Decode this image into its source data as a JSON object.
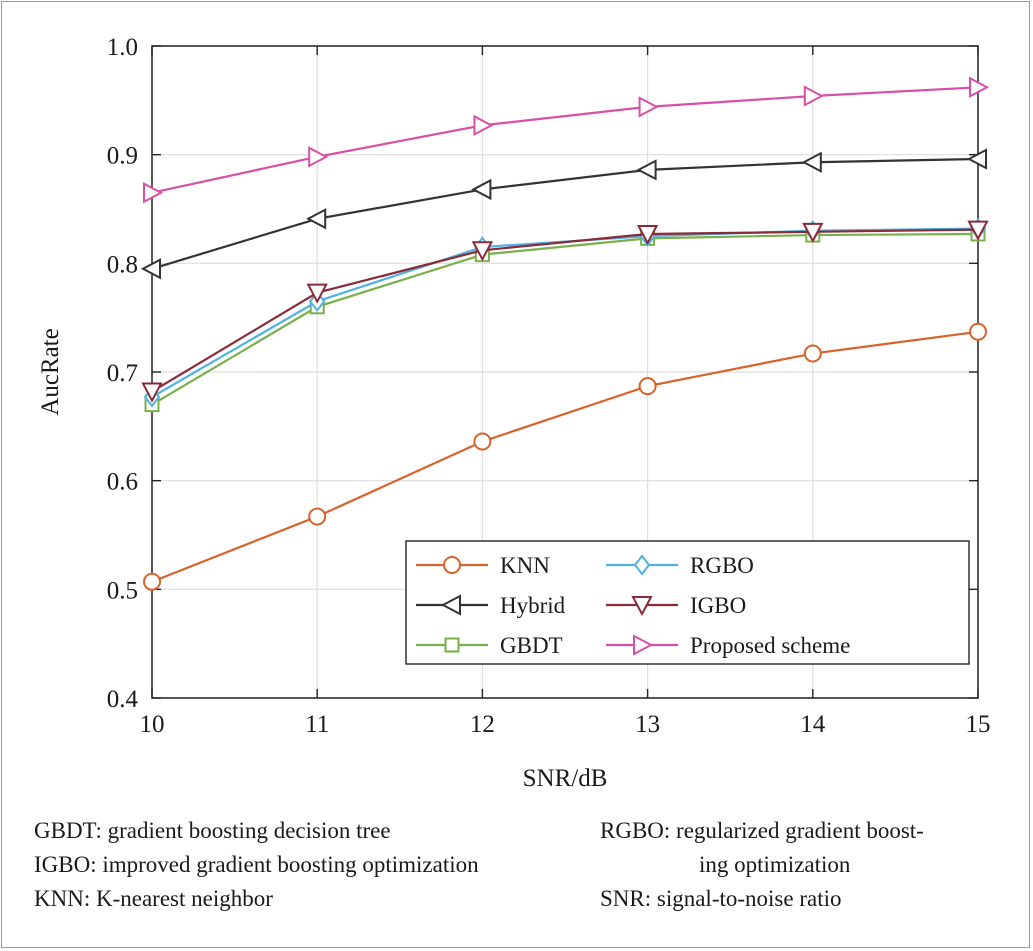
{
  "chart_data": {
    "type": "line",
    "xlabel": "SNR/dB",
    "ylabel": "AucRate",
    "x": [
      10,
      11,
      12,
      13,
      14,
      15
    ],
    "xlim": [
      10,
      15
    ],
    "ylim": [
      0.4,
      1.0
    ],
    "x_ticks": [
      "10",
      "11",
      "12",
      "13",
      "14",
      "15"
    ],
    "y_ticks": [
      "0.4",
      "0.5",
      "0.6",
      "0.7",
      "0.8",
      "0.9",
      "1.0"
    ],
    "grid": true,
    "legend_position": "bottom-right",
    "series": [
      {
        "name": "KNN",
        "values": [
          0.507,
          0.567,
          0.636,
          0.687,
          0.717,
          0.737
        ],
        "color": "#d9622b",
        "marker": "circle"
      },
      {
        "name": "Hybrid",
        "values": [
          0.795,
          0.841,
          0.868,
          0.886,
          0.893,
          0.896
        ],
        "color": "#333333",
        "marker": "triangle-left"
      },
      {
        "name": "GBDT",
        "values": [
          0.67,
          0.76,
          0.808,
          0.823,
          0.826,
          0.827
        ],
        "color": "#7ab04a",
        "marker": "square"
      },
      {
        "name": "RGBO",
        "values": [
          0.677,
          0.765,
          0.815,
          0.825,
          0.83,
          0.832
        ],
        "color": "#4fb3e0",
        "marker": "diamond"
      },
      {
        "name": "IGBO",
        "values": [
          0.682,
          0.773,
          0.812,
          0.827,
          0.829,
          0.831
        ],
        "color": "#8b2a3a",
        "marker": "triangle-down"
      },
      {
        "name": "Proposed scheme",
        "values": [
          0.865,
          0.898,
          0.927,
          0.944,
          0.954,
          0.962
        ],
        "color": "#d94fa6",
        "marker": "triangle-right"
      }
    ],
    "legend_order": [
      0,
      3,
      1,
      4,
      2,
      5
    ]
  },
  "caption": {
    "left": [
      "GBDT: gradient boosting decision tree",
      "IGBO: improved gradient boosting optimization",
      "KNN: K-nearest neighbor"
    ],
    "right": [
      "RGBO: regularized gradient boost-",
      "ing optimization",
      "SNR: signal-to-noise ratio"
    ]
  }
}
